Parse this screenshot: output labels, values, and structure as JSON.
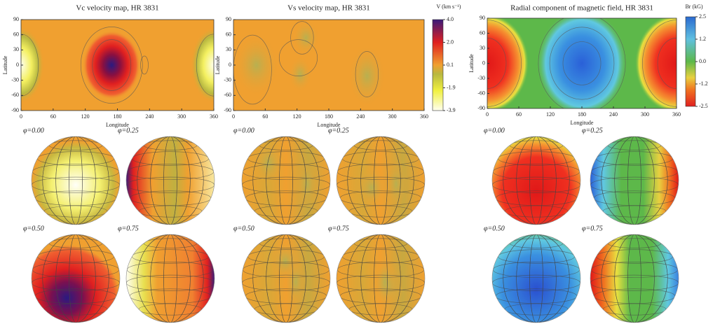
{
  "panels": [
    {
      "title": "Vc velocity map, HR 3831",
      "x_label": "Longitude",
      "y_label": "Latitude",
      "x_ticks": [
        "0",
        "60",
        "120",
        "180",
        "240",
        "300",
        "360"
      ],
      "y_ticks": [
        "90",
        "60",
        "30",
        "0",
        "-30",
        "-60",
        "-90"
      ]
    },
    {
      "title": "Vs velocity map, HR 3831",
      "x_label": "Longitude",
      "y_label": "Latitude",
      "x_ticks": [
        "0",
        "60",
        "120",
        "180",
        "240",
        "300",
        "360"
      ],
      "y_ticks": [
        "90",
        "60",
        "30",
        "0",
        "-30",
        "-60",
        "-90"
      ]
    },
    {
      "title": "Radial component of magnetic field, HR 3831",
      "x_label": "Longitude",
      "y_label": "Latitude",
      "x_ticks": [
        "0",
        "60",
        "120",
        "180",
        "240",
        "300",
        "360"
      ],
      "y_ticks": [
        "90",
        "60",
        "30",
        "0",
        "-30",
        "-60",
        "-90"
      ]
    }
  ],
  "colorbars": [
    {
      "title": "V (km s⁻¹)",
      "ticks": [
        "4.0",
        "2.0",
        "0.1",
        "-1.9",
        "-3.9"
      ]
    },
    {
      "title": "Br (kG)",
      "ticks": [
        "2.5",
        "1.2",
        "0.0",
        "-1.2",
        "-2.5"
      ]
    }
  ],
  "spheres": [
    [
      "φ=0.00",
      "φ=0.25",
      "φ=0.50",
      "φ=0.75"
    ],
    [
      "φ=0.00",
      "φ=0.25",
      "φ=0.50",
      "φ=0.75"
    ],
    [
      "φ=0.00",
      "φ=0.25",
      "φ=0.50",
      "φ=0.75"
    ]
  ]
}
